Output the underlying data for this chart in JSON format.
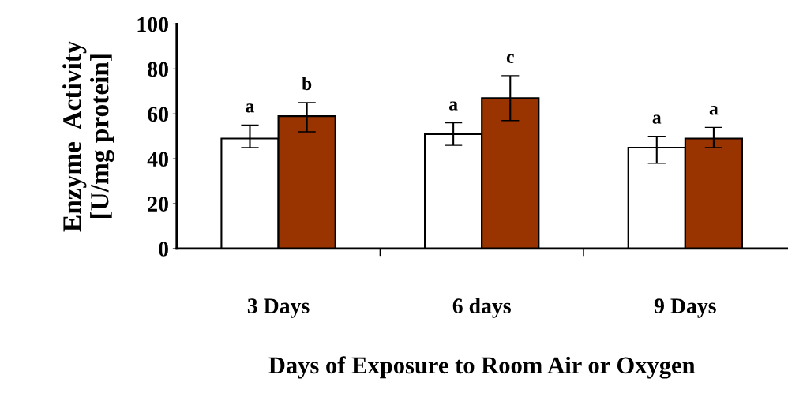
{
  "chart_data": {
    "type": "bar",
    "xlabel": "Days of Exposure to Room Air or Oxygen",
    "ylabel": "Enzyme  Activity\n[U/mg protein]",
    "categories": [
      "3 Days",
      "6 days",
      "9 Days"
    ],
    "series": [
      {
        "color": "#ffffff",
        "values": [
          49,
          51,
          45
        ],
        "errors": [
          [
            45,
            55
          ],
          [
            46,
            56
          ],
          [
            38,
            50
          ]
        ],
        "value_labels": [
          "a",
          "a",
          "a"
        ]
      },
      {
        "color": "#993300",
        "values": [
          59,
          67,
          49
        ],
        "errors": [
          [
            52,
            65
          ],
          [
            57,
            77
          ],
          [
            45,
            54
          ]
        ],
        "value_labels": [
          "b",
          "c",
          "a"
        ]
      }
    ],
    "ylim": [
      0,
      100
    ],
    "yticks": [
      0,
      20,
      40,
      60,
      80,
      100
    ],
    "grid": false,
    "legend": false
  }
}
